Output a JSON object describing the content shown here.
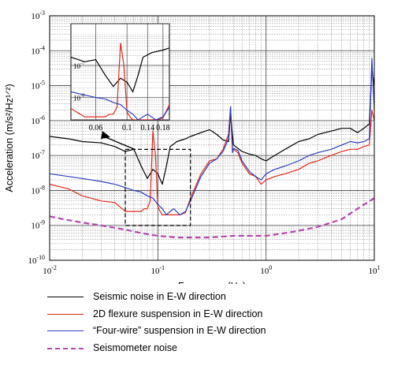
{
  "chart_data": {
    "type": "line",
    "xlabel": "Frequency (Hz)",
    "ylabel": "Acceleration (m/s²/Hz¹ᐟ²)",
    "xscale": "log",
    "yscale": "log",
    "xlim": [
      0.01,
      10
    ],
    "ylim": [
      1e-10,
      0.001
    ],
    "x_ticks": [
      {
        "base": "10",
        "exp": "-2"
      },
      {
        "base": "10",
        "exp": "-1"
      },
      {
        "base": "10",
        "exp": "0"
      },
      {
        "base": "10",
        "exp": "1"
      }
    ],
    "y_ticks": [
      {
        "base": "10",
        "exp": "-10"
      },
      {
        "base": "10",
        "exp": "-9"
      },
      {
        "base": "10",
        "exp": "-8"
      },
      {
        "base": "10",
        "exp": "-7"
      },
      {
        "base": "10",
        "exp": "-6"
      },
      {
        "base": "10",
        "exp": "-5"
      },
      {
        "base": "10",
        "exp": "-4"
      },
      {
        "base": "10",
        "exp": "-3"
      }
    ],
    "grid": true,
    "legend_position": "below",
    "series": [
      {
        "name": "Seismic noise in E-W direction",
        "color": "#000000",
        "x": [
          0.01,
          0.015,
          0.02,
          0.03,
          0.04,
          0.05,
          0.06,
          0.07,
          0.08,
          0.09,
          0.1,
          0.11,
          0.12,
          0.13,
          0.15,
          0.18,
          0.2,
          0.25,
          0.3,
          0.35,
          0.4,
          0.45,
          0.47,
          0.5,
          0.55,
          0.6,
          0.7,
          0.8,
          0.9,
          1.0,
          1.2,
          1.5,
          2.0,
          2.5,
          3.0,
          4.0,
          5.0,
          6.0,
          7.0,
          8.0,
          9.0,
          9.5,
          10
        ],
        "y": [
          3.5e-07,
          3e-07,
          2.5e-07,
          2.3e-07,
          1.8e-07,
          1.3e-07,
          1.5e-07,
          5e-08,
          2.2e-08,
          4e-08,
          3e-08,
          1.5e-08,
          5e-08,
          1.8e-07,
          2.5e-07,
          3e-07,
          3.5e-07,
          4.5e-07,
          5.5e-07,
          4e-07,
          2.8e-07,
          2.5e-07,
          1.5e-06,
          2e-07,
          1.6e-07,
          1.3e-07,
          1.1e-07,
          1e-07,
          8e-08,
          7e-08,
          1e-07,
          1.5e-07,
          2.5e-07,
          3e-07,
          4e-07,
          5e-07,
          6e-07,
          6e-07,
          4.5e-07,
          6e-07,
          8e-07,
          3e-05,
          1e-05
        ]
      },
      {
        "name": "2D flexure suspension in E-W direction",
        "color": "#e0281e",
        "x": [
          0.01,
          0.015,
          0.02,
          0.03,
          0.04,
          0.05,
          0.06,
          0.07,
          0.075,
          0.08,
          0.085,
          0.09,
          0.095,
          0.1,
          0.105,
          0.11,
          0.12,
          0.14,
          0.16,
          0.18,
          0.2,
          0.25,
          0.3,
          0.35,
          0.4,
          0.45,
          0.47,
          0.49,
          0.5,
          0.55,
          0.6,
          0.7,
          0.8,
          0.9,
          1.0,
          1.2,
          1.5,
          2.0,
          2.5,
          3.0,
          4.0,
          5.0,
          6.0,
          7.0,
          8.0,
          9.0,
          9.5,
          10
        ],
        "y": [
          1.5e-08,
          1.1e-08,
          7e-09,
          5e-09,
          4.5e-09,
          2.5e-09,
          2.5e-09,
          2.5e-09,
          3e-09,
          3e-09,
          5e-09,
          5e-07,
          1e-07,
          3.5e-09,
          2.5e-09,
          2e-09,
          2e-09,
          2e-09,
          2e-09,
          2.3e-09,
          6e-09,
          3e-08,
          7e-08,
          8e-08,
          1.5e-07,
          4e-07,
          2.5e-06,
          1.2e-07,
          1.5e-07,
          1.2e-07,
          6e-08,
          3e-08,
          2.5e-08,
          1.5e-08,
          2e-08,
          2.5e-08,
          3e-08,
          4e-08,
          6e-08,
          7e-08,
          1e-07,
          1.3e-07,
          1.5e-07,
          1.5e-07,
          1.8e-07,
          2e-07,
          2e-06,
          1e-06
        ]
      },
      {
        "name": "“Four-wire” suspension in E-W direction",
        "color": "#2e3ec0",
        "x": [
          0.01,
          0.015,
          0.02,
          0.03,
          0.04,
          0.05,
          0.06,
          0.07,
          0.08,
          0.09,
          0.1,
          0.11,
          0.12,
          0.13,
          0.14,
          0.16,
          0.18,
          0.2,
          0.25,
          0.3,
          0.35,
          0.4,
          0.45,
          0.47,
          0.49,
          0.5,
          0.55,
          0.6,
          0.7,
          0.8,
          0.9,
          1.0,
          1.2,
          1.5,
          2.0,
          2.5,
          3.0,
          4.0,
          5.0,
          6.0,
          7.0,
          8.0,
          9.0,
          9.5,
          10
        ],
        "y": [
          3e-08,
          2.5e-08,
          2.2e-08,
          1.8e-08,
          1.5e-08,
          1.2e-08,
          1e-08,
          9e-09,
          7e-09,
          6e-09,
          4e-09,
          3e-09,
          2e-09,
          2.5e-09,
          3e-09,
          2e-09,
          2.5e-09,
          5e-09,
          2.5e-08,
          6e-08,
          8e-08,
          1.3e-07,
          3e-07,
          2.5e-06,
          1.2e-07,
          1.6e-07,
          1.4e-07,
          7e-08,
          3.5e-08,
          2.5e-08,
          2e-08,
          3e-08,
          4e-08,
          5e-08,
          7e-08,
          1e-07,
          1.2e-07,
          1.5e-07,
          2e-07,
          2.5e-07,
          2.3e-07,
          2.5e-07,
          3e-07,
          6e-05,
          2e-06
        ]
      },
      {
        "name": "Seismometer noise",
        "color": "#b44aae",
        "dashed": true,
        "x": [
          0.01,
          0.015,
          0.02,
          0.03,
          0.05,
          0.07,
          0.1,
          0.15,
          0.2,
          0.3,
          0.5,
          0.7,
          1.0,
          1.5,
          2.0,
          3.0,
          5.0,
          7.0,
          10
        ],
        "y": [
          1.8e-09,
          1.4e-09,
          1.2e-09,
          1e-09,
          7.5e-10,
          6e-10,
          5e-10,
          4.5e-10,
          4.5e-10,
          4.5e-10,
          5e-10,
          5e-10,
          5e-10,
          6e-10,
          7e-10,
          9e-10,
          1.5e-09,
          3e-09,
          6e-09
        ]
      }
    ],
    "inset": {
      "xlim": [
        0.04,
        0.2
      ],
      "ylim": [
        2e-09,
        2e-06
      ],
      "x_tick_labels": [
        "0.06",
        "0.1",
        "0.14",
        "0.18"
      ],
      "x_tick_values": [
        0.06,
        0.1,
        0.14,
        0.18
      ],
      "y_tick_labels": [
        {
          "base": "10",
          "exp": "-7"
        },
        {
          "base": "10",
          "exp": "-8"
        }
      ],
      "y_tick_values": [
        1e-07,
        1e-08
      ]
    },
    "zoom_box": {
      "xlim": [
        0.05,
        0.2
      ],
      "ylim": [
        1e-09,
        1.5e-07
      ]
    }
  }
}
